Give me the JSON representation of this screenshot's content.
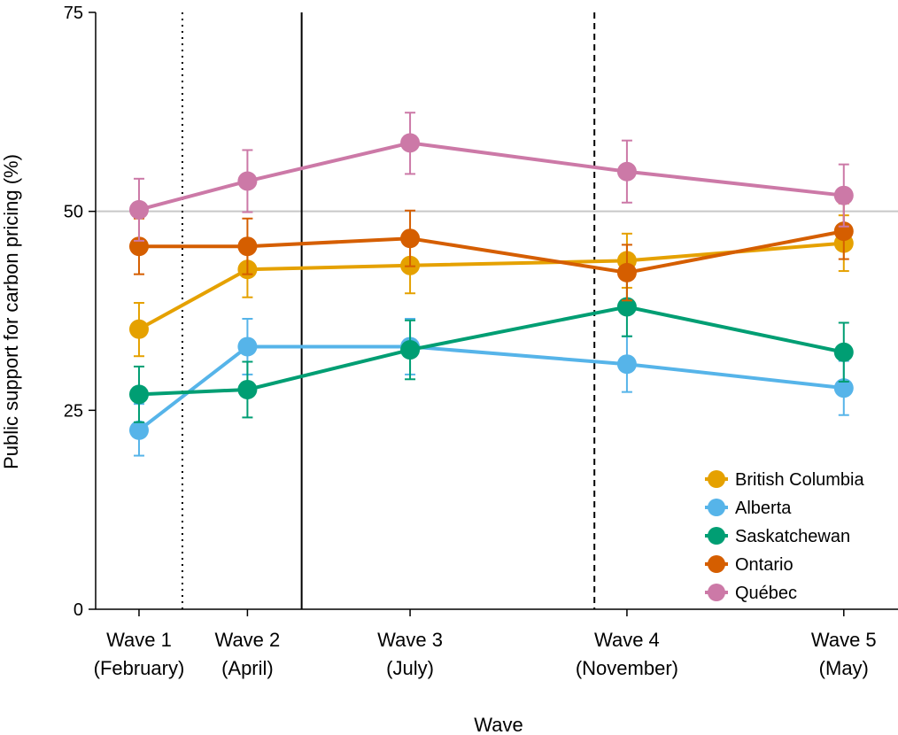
{
  "chart_data": {
    "type": "line",
    "title": "",
    "xlabel": "Wave",
    "ylabel": "Public support for carbon pricing (%)",
    "ylim": [
      0,
      75
    ],
    "yticks": [
      0,
      25,
      50,
      75
    ],
    "categories": [
      {
        "line1": "Wave 1",
        "line2": "(February)",
        "x": 1
      },
      {
        "line1": "Wave 2",
        "line2": "(April)",
        "x": 2
      },
      {
        "line1": "Wave 3",
        "line2": "(July)",
        "x": 3.5
      },
      {
        "line1": "Wave 4",
        "line2": "(November)",
        "x": 5.5
      },
      {
        "line1": "Wave 5",
        "line2": "(May)",
        "x": 7.5
      }
    ],
    "xlim": [
      0.6,
      8.0
    ],
    "reference_line": {
      "y": 50,
      "color": "#c8c8c8"
    },
    "vertical_lines": [
      {
        "x": 1.4,
        "style": "dotted"
      },
      {
        "x": 2.5,
        "style": "solid"
      },
      {
        "x": 5.2,
        "style": "dashed"
      }
    ],
    "series": [
      {
        "name": "British Columbia",
        "color": "#E5A100",
        "values": [
          35.2,
          42.7,
          43.2,
          43.8,
          46.0
        ],
        "lower": [
          31.8,
          39.2,
          39.7,
          40.4,
          42.5
        ],
        "upper": [
          38.5,
          46.2,
          46.7,
          47.2,
          49.5
        ]
      },
      {
        "name": "Alberta",
        "color": "#56B4E9",
        "values": [
          22.5,
          33.0,
          33.0,
          30.8,
          27.8
        ],
        "lower": [
          19.3,
          29.5,
          29.5,
          27.3,
          24.4
        ],
        "upper": [
          25.8,
          36.5,
          36.5,
          34.3,
          31.2
        ]
      },
      {
        "name": "Saskatchewan",
        "color": "#009E73",
        "values": [
          27.0,
          27.6,
          32.6,
          38.0,
          32.3
        ],
        "lower": [
          23.5,
          24.1,
          28.9,
          34.3,
          28.6
        ],
        "upper": [
          30.5,
          31.1,
          36.3,
          41.7,
          36.0
        ]
      },
      {
        "name": "Ontario",
        "color": "#D55E00",
        "values": [
          45.6,
          45.6,
          46.6,
          42.3,
          47.5
        ],
        "lower": [
          42.1,
          42.1,
          43.1,
          38.8,
          44.0
        ],
        "upper": [
          49.1,
          49.1,
          50.1,
          45.8,
          51.0
        ]
      },
      {
        "name": "Québec",
        "color": "#CC79A7",
        "values": [
          50.2,
          53.8,
          58.6,
          55.0,
          52.0
        ],
        "lower": [
          46.3,
          49.9,
          54.7,
          51.1,
          48.1
        ],
        "upper": [
          54.1,
          57.7,
          62.4,
          58.9,
          55.9
        ]
      }
    ],
    "legend_position": "bottom-right",
    "grid": false
  }
}
